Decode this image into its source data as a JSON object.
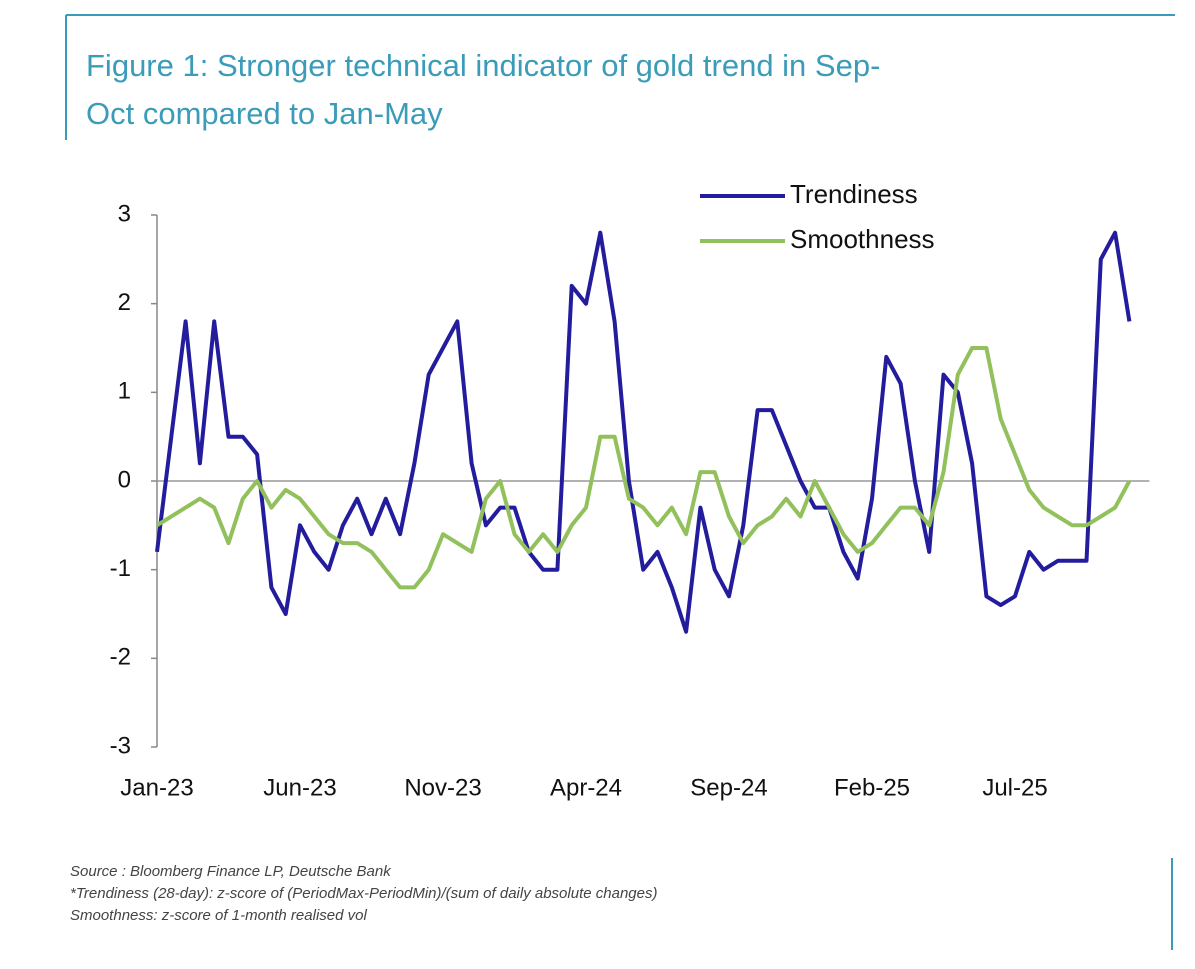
{
  "chart_data": {
    "type": "line",
    "title": "Figure 1: Stronger technical indicator of gold trend in Sep-Oct compared to Jan-May",
    "title_lines": [
      "Figure 1: Stronger technical indicator of gold trend in Sep-",
      "Oct compared to Jan-May"
    ],
    "categories": [
      "Jan-23",
      null,
      null,
      null,
      null,
      null,
      null,
      null,
      null,
      null,
      "Jun-23",
      null,
      null,
      null,
      null,
      null,
      null,
      null,
      null,
      null,
      "Nov-23",
      null,
      null,
      null,
      null,
      null,
      null,
      null,
      null,
      null,
      "Apr-24",
      null,
      null,
      null,
      null,
      null,
      null,
      null,
      null,
      null,
      "Sep-24",
      null,
      null,
      null,
      null,
      null,
      null,
      null,
      null,
      null,
      "Feb-25",
      null,
      null,
      null,
      null,
      null,
      null,
      null,
      null,
      null,
      "Jul-25",
      null,
      null,
      null,
      null,
      null,
      null,
      null,
      null
    ],
    "series": [
      {
        "name": "Trendiness",
        "color": "#231c9c",
        "values": [
          -0.8,
          0.5,
          1.8,
          0.2,
          1.8,
          0.5,
          0.5,
          0.3,
          -1.2,
          -1.5,
          -0.5,
          -0.8,
          -1.0,
          -0.5,
          -0.2,
          -0.6,
          -0.2,
          -0.6,
          0.2,
          1.2,
          1.5,
          1.8,
          0.2,
          -0.5,
          -0.3,
          -0.3,
          -0.8,
          -1.0,
          -1.0,
          2.2,
          2.0,
          2.8,
          1.8,
          0.0,
          -1.0,
          -0.8,
          -1.2,
          -1.7,
          -0.3,
          -1.0,
          -1.3,
          -0.5,
          0.8,
          0.8,
          0.4,
          0.0,
          -0.3,
          -0.3,
          -0.8,
          -1.1,
          -0.2,
          1.4,
          1.1,
          0.0,
          -0.8,
          1.2,
          1.0,
          0.2,
          -1.3,
          -1.4,
          -1.3,
          -0.8,
          -1.0,
          -0.9,
          -0.9,
          -0.9,
          2.5,
          2.8,
          1.8
        ]
      },
      {
        "name": "Smoothness",
        "color": "#92c05c",
        "values": [
          -0.5,
          -0.4,
          -0.3,
          -0.2,
          -0.3,
          -0.7,
          -0.2,
          0.0,
          -0.3,
          -0.1,
          -0.2,
          -0.4,
          -0.6,
          -0.7,
          -0.7,
          -0.8,
          -1.0,
          -1.2,
          -1.2,
          -1.0,
          -0.6,
          -0.7,
          -0.8,
          -0.2,
          0.0,
          -0.6,
          -0.8,
          -0.6,
          -0.8,
          -0.5,
          -0.3,
          0.5,
          0.5,
          -0.2,
          -0.3,
          -0.5,
          -0.3,
          -0.6,
          0.1,
          0.1,
          -0.4,
          -0.7,
          -0.5,
          -0.4,
          -0.2,
          -0.4,
          0.0,
          -0.3,
          -0.6,
          -0.8,
          -0.7,
          -0.5,
          -0.3,
          -0.3,
          -0.5,
          0.1,
          1.2,
          1.5,
          1.5,
          0.7,
          0.3,
          -0.1,
          -0.3,
          -0.4,
          -0.5,
          -0.5,
          -0.4,
          -0.3,
          0.0
        ]
      }
    ],
    "ylim": [
      -3,
      3
    ],
    "yticks": [
      -3,
      -2,
      -1,
      0,
      1,
      2,
      3
    ],
    "zero_line": true,
    "legend": "top-right",
    "notes": [
      "Source : Bloomberg Finance LP, Deutsche Bank",
      "*Trendiness (28-day): z-score of (PeriodMax-PeriodMin)/(sum of daily absolute changes)",
      "Smoothness: z-score of 1-month realised vol"
    ]
  }
}
